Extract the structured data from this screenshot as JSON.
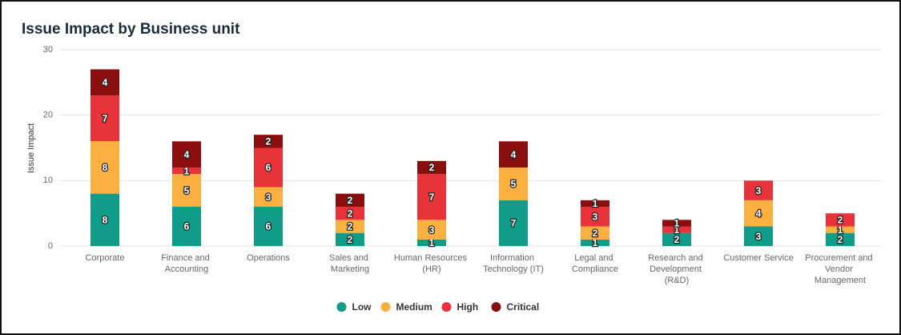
{
  "chart_data": {
    "type": "stacked_bar",
    "title": "Issue Impact by Business unit",
    "y_label": "Issue Impact",
    "categories": [
      "Corporate",
      "Finance and Accounting",
      "Operations",
      "Sales and Marketing",
      "Human Resources (HR)",
      "Information Technology (IT)",
      "Legal and Compliance",
      "Research and Development (R&D)",
      "Customer Service",
      "Procurement and Vendor Management"
    ],
    "series": [
      {
        "name": "Low",
        "color": "#0f9d8a",
        "values": [
          8,
          6,
          6,
          2,
          1,
          7,
          1,
          2,
          3,
          2
        ]
      },
      {
        "name": "Medium",
        "color": "#fbb040",
        "values": [
          8,
          5,
          3,
          2,
          3,
          5,
          2,
          0,
          4,
          1
        ]
      },
      {
        "name": "High",
        "color": "#e8333a",
        "values": [
          7,
          1,
          6,
          2,
          7,
          0,
          3,
          1,
          3,
          2
        ]
      },
      {
        "name": "Critical",
        "color": "#8b0e0e",
        "values": [
          4,
          4,
          2,
          2,
          2,
          4,
          1,
          1,
          0,
          0
        ]
      }
    ],
    "ylim": [
      0,
      30
    ],
    "yticks": [
      0,
      10,
      20,
      30
    ],
    "grid": true,
    "legend": "bottom"
  }
}
